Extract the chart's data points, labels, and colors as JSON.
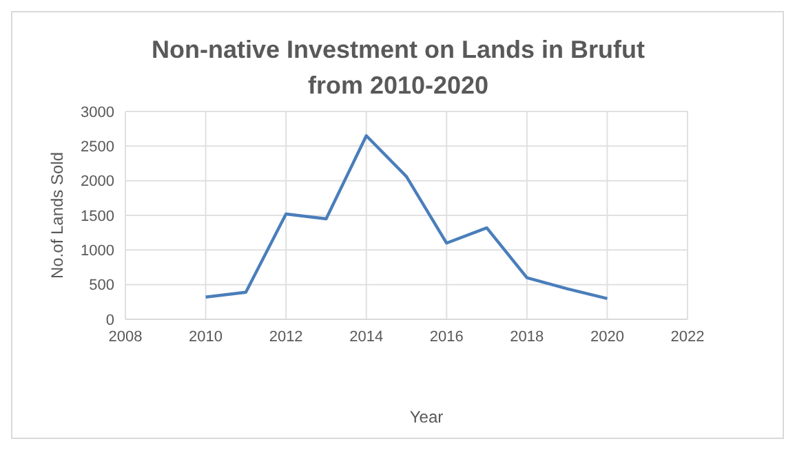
{
  "chart_data": {
    "type": "line",
    "title": "Non-native Investment on Lands in Brufut from 2010-2020",
    "xlabel": "Year",
    "ylabel": "No.of Lands Sold",
    "x": [
      2010,
      2011,
      2012,
      2013,
      2014,
      2015,
      2016,
      2017,
      2018,
      2019,
      2020
    ],
    "series": [
      {
        "color": "#4a7ebb",
        "values": [
          320,
          390,
          1520,
          1450,
          2650,
          2060,
          1100,
          1320,
          600,
          440,
          300
        ]
      }
    ],
    "xlim": [
      2008,
      2022
    ],
    "xticks": [
      2008,
      2010,
      2012,
      2014,
      2016,
      2018,
      2020,
      2022
    ],
    "ylim": [
      0,
      3000
    ],
    "yticks": [
      0,
      500,
      1000,
      1500,
      2000,
      2500,
      3000
    ],
    "grid": true,
    "legend": false,
    "marker": "none",
    "line_style": "solid"
  }
}
